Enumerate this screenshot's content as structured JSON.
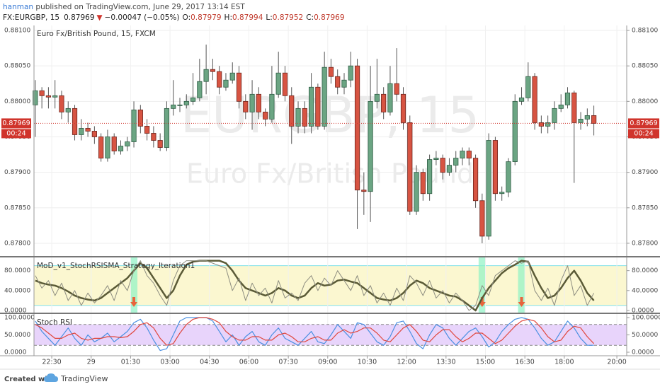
{
  "header": {
    "author": "hanman",
    "published": " published on TradingView.com, June 29, 2017 13:14 EST",
    "symbol": "FX:EURGBP, 15",
    "last": "0.87969",
    "arrow": "▼",
    "change": "−0.00047 (−0.05%)",
    "ohlc": [
      {
        "label": "O:",
        "value": "0.87979"
      },
      {
        "label": "H:",
        "value": "0.87994"
      },
      {
        "label": "L:",
        "value": "0.87952"
      },
      {
        "label": "C:",
        "value": "0.87969"
      }
    ]
  },
  "footer": {
    "created": "Created with",
    "brand": "TradingView"
  },
  "chart_data": [
    {
      "type": "candlestick",
      "title": "Euro Fx/British Pound, 15, FXCM",
      "watermark": [
        "EURGBP, 15",
        "Euro Fx/British Pound"
      ],
      "up_color": "#6ba583",
      "down_color": "#d75442",
      "last_price": 0.87969,
      "countdown": "00:24",
      "xlim": [
        -0.2,
        90
      ],
      "ylim": [
        0.87782,
        0.88107
      ],
      "yticks": [
        {
          "value": 0.881,
          "label": "0.88100"
        },
        {
          "value": 0.8805,
          "label": "0.88050"
        },
        {
          "value": 0.88,
          "label": "0.88000"
        },
        {
          "value": 0.8795,
          "label": "0.87950"
        },
        {
          "value": 0.879,
          "label": "0.87900"
        },
        {
          "value": 0.8785,
          "label": "0.87850"
        },
        {
          "value": 0.878,
          "label": "0.87800"
        }
      ],
      "grid": true,
      "open": [
        0.87995,
        0.88015,
        0.88008,
        0.88006,
        0.88008,
        0.87985,
        0.8799,
        0.87953,
        0.87962,
        0.87958,
        0.8795,
        0.8792,
        0.8795,
        0.8793,
        0.87937,
        0.87943,
        0.87988,
        0.87965,
        0.87955,
        0.87945,
        0.87935,
        0.8799,
        0.87995,
        0.87995,
        0.88,
        0.88005,
        0.88028,
        0.88045,
        0.88042,
        0.8802,
        0.8803,
        0.8804,
        0.88,
        0.87985,
        0.8801,
        0.87985,
        0.87975,
        0.8801,
        0.8804,
        0.88008,
        0.87965,
        0.8799,
        0.87965,
        0.8802,
        0.87965,
        0.88048,
        0.88035,
        0.8802,
        0.8803,
        0.8805,
        0.87875,
        0.87873,
        0.88,
        0.8801,
        0.87985,
        0.88025,
        0.8801,
        0.8797,
        0.87845,
        0.879,
        0.8787,
        0.87918,
        0.8792,
        0.879,
        0.8791,
        0.8792,
        0.8793,
        0.8792,
        0.8786,
        0.8781,
        0.87945,
        0.8787,
        0.87872,
        0.87915,
        0.88,
        0.88005,
        0.88035,
        0.8797,
        0.87965,
        0.8797,
        0.8799,
        0.87995,
        0.88012,
        0.8797,
        0.87975,
        0.8798
      ],
      "high": [
        0.8803,
        0.8802,
        0.8802,
        0.8803,
        0.88015,
        0.88,
        0.87995,
        0.87975,
        0.8797,
        0.87965,
        0.87955,
        0.8796,
        0.87955,
        0.87945,
        0.8795,
        0.88,
        0.87995,
        0.87975,
        0.87965,
        0.87955,
        0.88,
        0.8803,
        0.88005,
        0.8801,
        0.8804,
        0.8806,
        0.8808,
        0.8806,
        0.8805,
        0.8804,
        0.88055,
        0.8805,
        0.8801,
        0.8803,
        0.8802,
        0.8799,
        0.8805,
        0.8807,
        0.8805,
        0.8802,
        0.88,
        0.88,
        0.8804,
        0.88025,
        0.8807,
        0.8806,
        0.88045,
        0.8804,
        0.8807,
        0.8806,
        0.879,
        0.8805,
        0.8806,
        0.8802,
        0.8805,
        0.88075,
        0.8802,
        0.8798,
        0.8791,
        0.87905,
        0.87925,
        0.8793,
        0.87925,
        0.8792,
        0.8793,
        0.87935,
        0.87935,
        0.87925,
        0.8787,
        0.87955,
        0.8795,
        0.8788,
        0.8792,
        0.8801,
        0.8802,
        0.88055,
        0.8804,
        0.8798,
        0.8798,
        0.88,
        0.8801,
        0.8802,
        0.88015,
        0.87985,
        0.8799,
        0.87994
      ],
      "low": [
        0.8795,
        0.8799,
        0.8799,
        0.8799,
        0.87975,
        0.8797,
        0.87945,
        0.87945,
        0.8795,
        0.8794,
        0.87915,
        0.87915,
        0.87925,
        0.87925,
        0.8793,
        0.87935,
        0.87955,
        0.87945,
        0.87935,
        0.8793,
        0.8793,
        0.8798,
        0.87985,
        0.8799,
        0.87995,
        0.88,
        0.8801,
        0.8803,
        0.8801,
        0.88015,
        0.88025,
        0.8799,
        0.87975,
        0.8796,
        0.87975,
        0.87965,
        0.8797,
        0.88005,
        0.88,
        0.8794,
        0.87955,
        0.87955,
        0.87955,
        0.8796,
        0.8796,
        0.88025,
        0.8801,
        0.8801,
        0.8802,
        0.8782,
        0.8784,
        0.8783,
        0.8799,
        0.87975,
        0.8798,
        0.88,
        0.8796,
        0.8784,
        0.8784,
        0.8786,
        0.8786,
        0.8791,
        0.8789,
        0.87895,
        0.879,
        0.8791,
        0.8791,
        0.8785,
        0.878,
        0.87805,
        0.8786,
        0.8786,
        0.87865,
        0.8791,
        0.87995,
        0.88,
        0.8796,
        0.87955,
        0.87955,
        0.8796,
        0.87985,
        0.8799,
        0.87885,
        0.8796,
        0.87965,
        0.87952
      ],
      "close": [
        0.88015,
        0.88008,
        0.88006,
        0.88008,
        0.87985,
        0.8799,
        0.87953,
        0.87962,
        0.87958,
        0.8795,
        0.8792,
        0.8795,
        0.8793,
        0.87937,
        0.87943,
        0.87988,
        0.87965,
        0.87955,
        0.87945,
        0.87935,
        0.8799,
        0.87995,
        0.87995,
        0.88,
        0.88005,
        0.88028,
        0.88045,
        0.88042,
        0.8802,
        0.8803,
        0.8804,
        0.88,
        0.87985,
        0.8801,
        0.87985,
        0.87975,
        0.8801,
        0.8804,
        0.88008,
        0.87965,
        0.8799,
        0.87965,
        0.8802,
        0.87965,
        0.88048,
        0.88035,
        0.8802,
        0.8803,
        0.8805,
        0.87875,
        0.87873,
        0.88,
        0.8801,
        0.87985,
        0.88025,
        0.8801,
        0.8797,
        0.87845,
        0.879,
        0.8787,
        0.87918,
        0.8792,
        0.879,
        0.8791,
        0.8792,
        0.8793,
        0.8792,
        0.8786,
        0.8781,
        0.87945,
        0.8787,
        0.87872,
        0.87915,
        0.88,
        0.88005,
        0.88035,
        0.8797,
        0.87965,
        0.8797,
        0.8799,
        0.87995,
        0.88012,
        0.8797,
        0.87975,
        0.8798,
        0.87969
      ]
    },
    {
      "type": "line",
      "title": "MoD_v1_StochRSISMA_Strategy_Iteration1",
      "xlim": [
        -0.2,
        90
      ],
      "ylim": [
        -4.3,
        106.5
      ],
      "yticks": [
        {
          "value": 80,
          "label": "80.0000"
        },
        {
          "value": 40,
          "label": "40.0000"
        },
        {
          "value": 0,
          "label": "0.0000"
        }
      ],
      "levels": [
        10,
        90
      ],
      "fill": "#fbf7d0",
      "level_color": "#7fe0e8",
      "signals": [
        15,
        68,
        74
      ],
      "series": [
        {
          "color": "#5a5a36",
          "width": 2.5,
          "values": [
            60,
            55,
            52,
            50,
            45,
            38,
            30,
            25,
            22,
            20,
            25,
            35,
            45,
            55,
            65,
            80,
            95,
            85,
            65,
            45,
            25,
            40,
            70,
            92,
            98,
            100,
            100,
            100,
            100,
            95,
            80,
            60,
            45,
            40,
            35,
            30,
            35,
            45,
            40,
            30,
            25,
            30,
            45,
            55,
            50,
            52,
            60,
            62,
            58,
            55,
            45,
            35,
            25,
            22,
            20,
            25,
            35,
            50,
            60,
            55,
            45,
            40,
            35,
            30,
            28,
            20,
            10,
            0,
            25,
            45,
            60,
            75,
            85,
            92,
            100,
            98,
            70,
            45,
            25,
            30,
            45,
            65,
            80,
            60,
            35,
            20
          ]
        },
        {
          "color": "#8d8d80",
          "width": 1,
          "values": [
            70,
            45,
            60,
            30,
            55,
            20,
            40,
            10,
            35,
            15,
            30,
            50,
            20,
            60,
            40,
            80,
            100,
            70,
            55,
            30,
            10,
            60,
            90,
            100,
            100,
            100,
            100,
            95,
            90,
            85,
            40,
            65,
            20,
            55,
            30,
            45,
            15,
            60,
            25,
            35,
            20,
            55,
            70,
            40,
            65,
            50,
            80,
            60,
            40,
            70,
            30,
            50,
            15,
            35,
            10,
            45,
            20,
            70,
            55,
            30,
            60,
            25,
            40,
            15,
            35,
            20,
            0,
            10,
            50,
            30,
            70,
            80,
            90,
            100,
            95,
            100,
            40,
            20,
            45,
            10,
            60,
            90,
            30,
            50,
            10,
            35
          ]
        }
      ]
    },
    {
      "type": "line",
      "title": "Stoch RSI",
      "xlim": [
        -0.2,
        90
      ],
      "ylim": [
        -10.2,
        110.2
      ],
      "yticks": [
        {
          "value": 100,
          "label": "100.0000"
        },
        {
          "value": 50,
          "label": "50.0000"
        },
        {
          "value": 0,
          "label": "0.0000"
        }
      ],
      "levels": [
        20,
        80
      ],
      "fill": "#e8d4fb",
      "level_color": "#888888",
      "xticks": [
        {
          "value": 2.5,
          "label": "22:30"
        },
        {
          "value": 8.5,
          "label": "29"
        },
        {
          "value": 14.5,
          "label": "01:30"
        },
        {
          "value": 20.5,
          "label": "03:00"
        },
        {
          "value": 26.5,
          "label": "04:30"
        },
        {
          "value": 32.5,
          "label": "06:00"
        },
        {
          "value": 38.5,
          "label": "07:30"
        },
        {
          "value": 44.5,
          "label": "09:00"
        },
        {
          "value": 50.5,
          "label": "10:30"
        },
        {
          "value": 56.5,
          "label": "12:00"
        },
        {
          "value": 62.5,
          "label": "13:30"
        },
        {
          "value": 68.5,
          "label": "15:00"
        },
        {
          "value": 74.5,
          "label": "16:30"
        },
        {
          "value": 80.5,
          "label": "18:00"
        },
        {
          "value": 88.5,
          "label": "20:00"
        }
      ],
      "series": [
        {
          "color": "#4a90e2",
          "width": 1.2,
          "values": [
            90,
            60,
            40,
            20,
            45,
            70,
            40,
            20,
            50,
            30,
            40,
            55,
            30,
            45,
            60,
            85,
            95,
            70,
            35,
            5,
            10,
            50,
            90,
            100,
            100,
            100,
            100,
            90,
            60,
            30,
            50,
            20,
            45,
            60,
            30,
            20,
            50,
            70,
            40,
            30,
            20,
            40,
            60,
            30,
            25,
            50,
            80,
            60,
            40,
            85,
            80,
            55,
            30,
            20,
            45,
            85,
            90,
            60,
            25,
            10,
            50,
            80,
            70,
            40,
            20,
            40,
            60,
            70,
            45,
            15,
            30,
            60,
            80,
            95,
            100,
            95,
            70,
            40,
            20,
            30,
            60,
            90,
            70,
            40,
            20,
            20
          ]
        },
        {
          "color": "#e0463c",
          "width": 1.2,
          "values": [
            80,
            70,
            55,
            40,
            40,
            50,
            55,
            40,
            35,
            40,
            40,
            45,
            45,
            42,
            45,
            60,
            80,
            85,
            70,
            40,
            20,
            25,
            55,
            80,
            95,
            100,
            100,
            95,
            85,
            60,
            45,
            35,
            35,
            45,
            45,
            35,
            35,
            50,
            55,
            45,
            30,
            30,
            40,
            45,
            35,
            35,
            55,
            65,
            55,
            60,
            70,
            70,
            55,
            35,
            30,
            50,
            70,
            80,
            60,
            35,
            30,
            50,
            65,
            65,
            45,
            30,
            40,
            55,
            55,
            40,
            25,
            35,
            55,
            75,
            90,
            95,
            90,
            70,
            45,
            30,
            35,
            60,
            75,
            70,
            45,
            25
          ]
        }
      ]
    }
  ]
}
